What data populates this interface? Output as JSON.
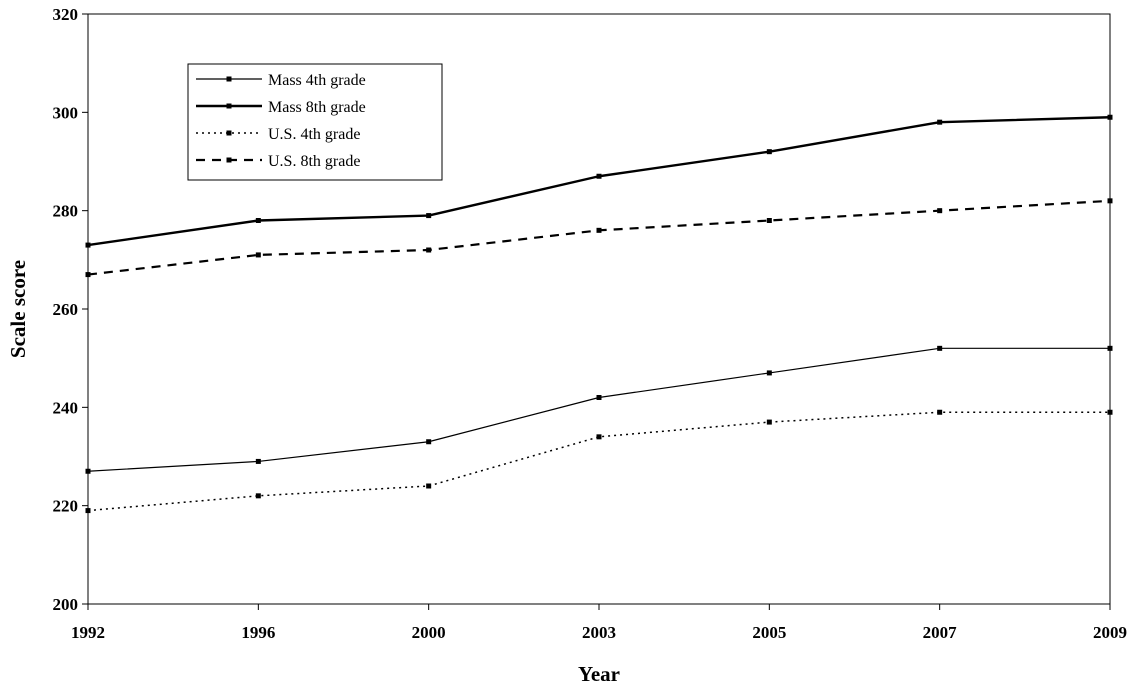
{
  "chart_data": {
    "type": "line",
    "title": "",
    "xlabel": "Year",
    "ylabel": "Scale score",
    "categories": [
      "1992",
      "1996",
      "2000",
      "2003",
      "2005",
      "2007",
      "2009"
    ],
    "ylim": [
      200,
      320
    ],
    "yticks": [
      200,
      220,
      240,
      260,
      280,
      300,
      320
    ],
    "grid": false,
    "legend_position": "top-left",
    "series": [
      {
        "name": "Mass 4th grade",
        "style": "thin-solid",
        "values": [
          227,
          229,
          233,
          242,
          247,
          252,
          252
        ]
      },
      {
        "name": "Mass 8th grade",
        "style": "thick-solid",
        "values": [
          273,
          278,
          279,
          287,
          292,
          298,
          299
        ]
      },
      {
        "name": "U.S. 4th grade",
        "style": "dotted",
        "values": [
          219,
          222,
          224,
          234,
          237,
          239,
          239
        ]
      },
      {
        "name": "U.S. 8th grade",
        "style": "dashed",
        "values": [
          267,
          271,
          272,
          276,
          278,
          280,
          282
        ]
      }
    ],
    "colors": {
      "line": "#000000",
      "background": "#ffffff"
    }
  }
}
